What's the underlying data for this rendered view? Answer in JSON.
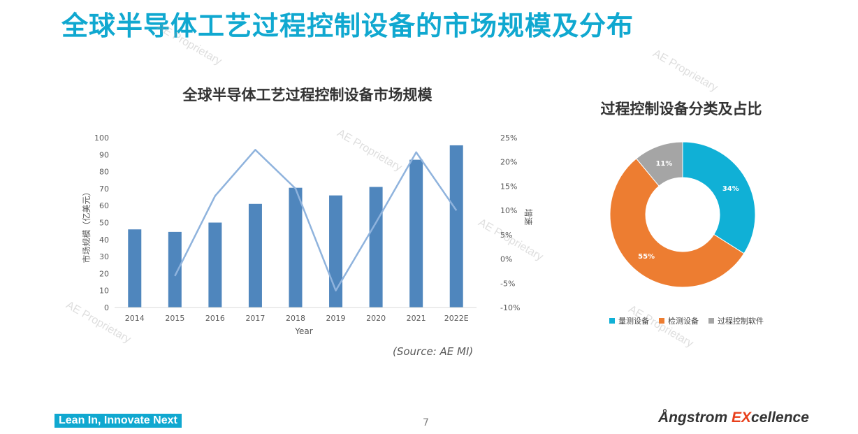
{
  "slide": {
    "title": "全球半导体工艺过程控制设备的市场规模及分布",
    "source": "(Source: AE MI)",
    "slogan": "Lean In, Innovate Next",
    "page_number": "7",
    "logo": {
      "part1": "Ångstrom ",
      "part2": "EX",
      "part3": "cellence"
    },
    "watermark": "AE Proprietary"
  },
  "colors": {
    "title": "#10a8d0",
    "bar": "#4f86bd",
    "line": "#8fb3dd",
    "donut": [
      "#10b0d6",
      "#ed7d31",
      "#a5a5a5"
    ]
  },
  "chart_data": [
    {
      "type": "bar",
      "title": "全球半导体工艺过程控制设备市场规模",
      "categories": [
        "2014",
        "2015",
        "2016",
        "2017",
        "2018",
        "2019",
        "2020",
        "2021",
        "2022E"
      ],
      "xlabel": "Year",
      "ylabel": "市场规模（亿美元）",
      "y2label": "增速",
      "ylim": [
        0,
        100
      ],
      "y_ticks": [
        "0",
        "10",
        "20",
        "30",
        "40",
        "50",
        "60",
        "70",
        "80",
        "90",
        "100"
      ],
      "y2lim": [
        -10,
        25
      ],
      "y2_ticks": [
        "-10%",
        "-5%",
        "0%",
        "5%",
        "10%",
        "15%",
        "20%",
        "25%"
      ],
      "series": [
        {
          "type": "bar",
          "axis": "left",
          "values": [
            46,
            44.5,
            50,
            61,
            70.5,
            66,
            71,
            87,
            95.5
          ]
        },
        {
          "type": "line",
          "axis": "right",
          "values": [
            null,
            -3.5,
            13,
            22.5,
            14.5,
            -6.5,
            7.5,
            22,
            10
          ]
        }
      ],
      "grid": false
    },
    {
      "type": "pie",
      "title": "过程控制设备分类及占比",
      "donut": true,
      "labels": [
        "量测设备",
        "检测设备",
        "过程控制软件"
      ],
      "values": [
        34,
        55,
        11
      ],
      "value_labels": [
        "34%",
        "55%",
        "11%"
      ],
      "legend": "bottom"
    }
  ]
}
